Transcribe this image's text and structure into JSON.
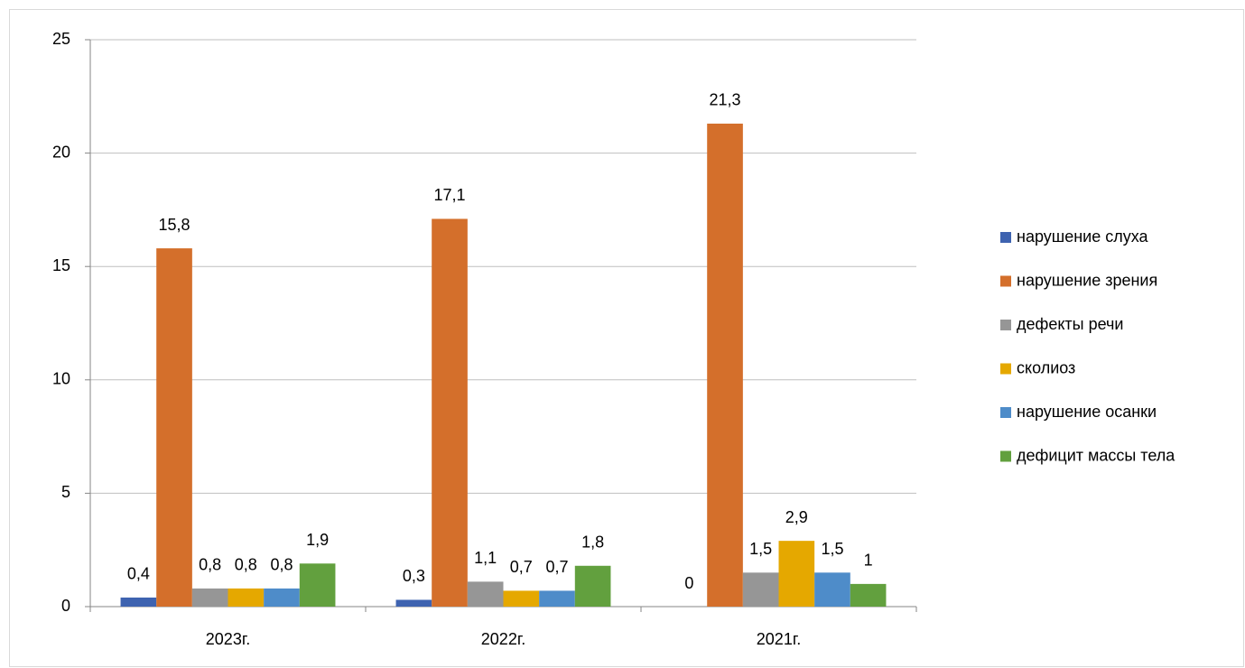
{
  "chart_data": {
    "type": "bar",
    "categories": [
      "2023г.",
      "2022г.",
      "2021г."
    ],
    "series": [
      {
        "name": "нарушение слуха",
        "color": "#3e63b0",
        "values": [
          0.4,
          0.3,
          0
        ],
        "value_labels": [
          "0,4",
          "0,3",
          "0"
        ]
      },
      {
        "name": "нарушение зрения",
        "color": "#d46f2b",
        "values": [
          15.8,
          17.1,
          21.3
        ],
        "value_labels": [
          "15,8",
          "17,1",
          "21,3"
        ]
      },
      {
        "name": "дефекты речи",
        "color": "#969696",
        "values": [
          0.8,
          1.1,
          1.5
        ],
        "value_labels": [
          "0,8",
          "1,1",
          "1,5"
        ]
      },
      {
        "name": "сколиоз",
        "color": "#e5a800",
        "values": [
          0.8,
          0.7,
          2.9
        ],
        "value_labels": [
          "0,8",
          "0,7",
          "2,9"
        ]
      },
      {
        "name": "нарушение осанки",
        "color": "#4e8cc9",
        "values": [
          0.8,
          0.7,
          1.5
        ],
        "value_labels": [
          "0,8",
          "0,7",
          "1,5"
        ]
      },
      {
        "name": "дефицит массы тела",
        "color": "#62a03e",
        "values": [
          1.9,
          1.8,
          1
        ],
        "value_labels": [
          "1,9",
          "1,8",
          "1"
        ]
      }
    ],
    "ylim": [
      0,
      25
    ],
    "yticks": [
      0,
      5,
      10,
      15,
      20,
      25
    ],
    "grid": true,
    "legend": "right"
  }
}
